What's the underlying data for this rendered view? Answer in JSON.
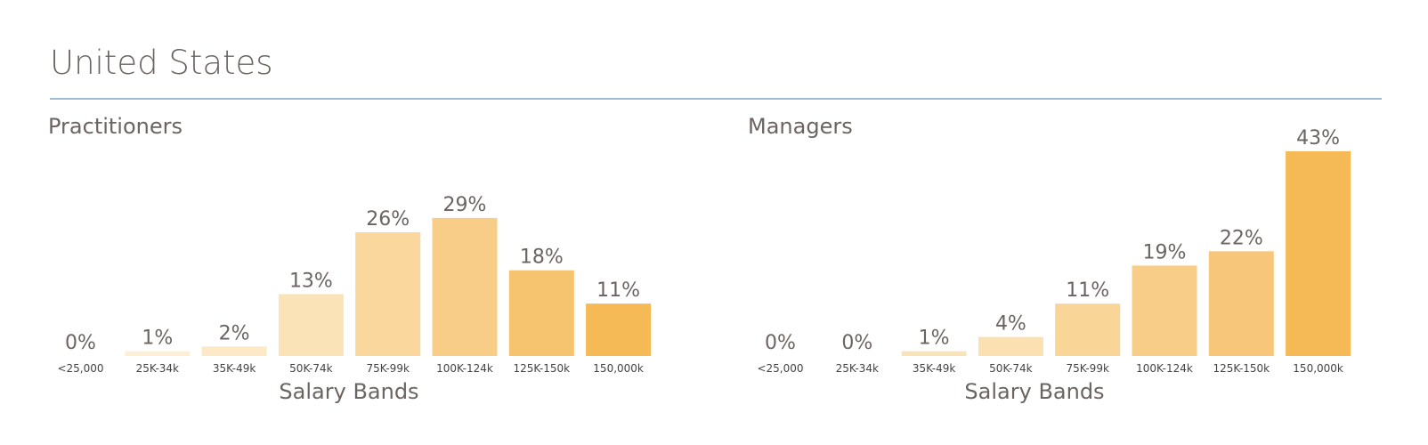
{
  "page": {
    "title": "United States"
  },
  "chart_data": [
    {
      "type": "bar",
      "title": "Practitioners",
      "xlabel": "Salary Bands",
      "ylabel": "",
      "ylim": [
        0,
        43
      ],
      "grid": false,
      "categories": [
        "<25,000",
        "25K-34k",
        "35K-49k",
        "50K-74k",
        "75K-99k",
        "100K-124k",
        "125K-150k",
        "150,000k"
      ],
      "values": [
        0,
        1,
        2,
        13,
        26,
        29,
        18,
        11
      ],
      "labels": [
        "0%",
        "1%",
        "2%",
        "13%",
        "26%",
        "29%",
        "18%",
        "11%"
      ],
      "colors": [
        "#fdf1da",
        "#fdefd5",
        "#fde9c6",
        "#fbe3b8",
        "#f9d79d",
        "#f8cd88",
        "#f6c36f",
        "#f5b955"
      ]
    },
    {
      "type": "bar",
      "title": "Managers",
      "xlabel": "Salary Bands",
      "ylabel": "",
      "ylim": [
        0,
        43
      ],
      "grid": false,
      "categories": [
        "<25,000",
        "25K-34k",
        "35K-49k",
        "50K-74k",
        "75K-99k",
        "100K-124k",
        "125K-150k",
        "150,000k"
      ],
      "values": [
        0,
        0,
        1,
        4,
        11,
        19,
        22,
        43
      ],
      "labels": [
        "0%",
        "0%",
        "1%",
        "4%",
        "11%",
        "19%",
        "22%",
        "43%"
      ],
      "colors": [
        "#fdf1da",
        "#fdf1da",
        "#fbe3b8",
        "#fbe1b2",
        "#f9d597",
        "#f8cd88",
        "#f7c67a",
        "#f5b955"
      ]
    }
  ]
}
